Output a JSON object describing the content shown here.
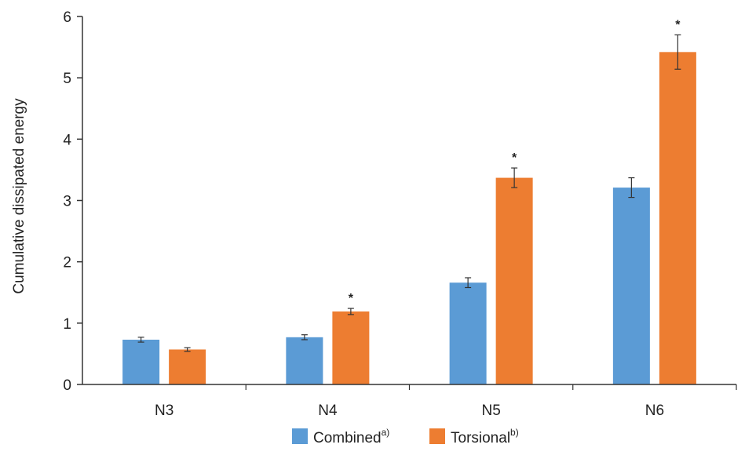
{
  "chart_data": {
    "type": "bar",
    "title": "",
    "xlabel": "",
    "ylabel": "Cumulative dissipated energy",
    "ylim": [
      0,
      6
    ],
    "yticks": [
      0,
      1,
      2,
      3,
      4,
      5,
      6
    ],
    "categories": [
      "N3",
      "N4",
      "N5",
      "N6"
    ],
    "grid": false,
    "legend_position": "bottom-center",
    "series": [
      {
        "name": "Combined",
        "superscript": "a)",
        "color": "#5b9bd5",
        "values": [
          0.73,
          0.77,
          1.66,
          3.21
        ],
        "errors": [
          0.04,
          0.04,
          0.08,
          0.16
        ]
      },
      {
        "name": "Torsional",
        "superscript": "b)",
        "color": "#ed7d31",
        "values": [
          0.57,
          1.19,
          3.37,
          5.42
        ],
        "errors": [
          0.03,
          0.05,
          0.16,
          0.28
        ]
      }
    ],
    "significance_marker": "*",
    "significant": [
      [
        false,
        false,
        false,
        false
      ],
      [
        false,
        true,
        true,
        true
      ]
    ]
  }
}
